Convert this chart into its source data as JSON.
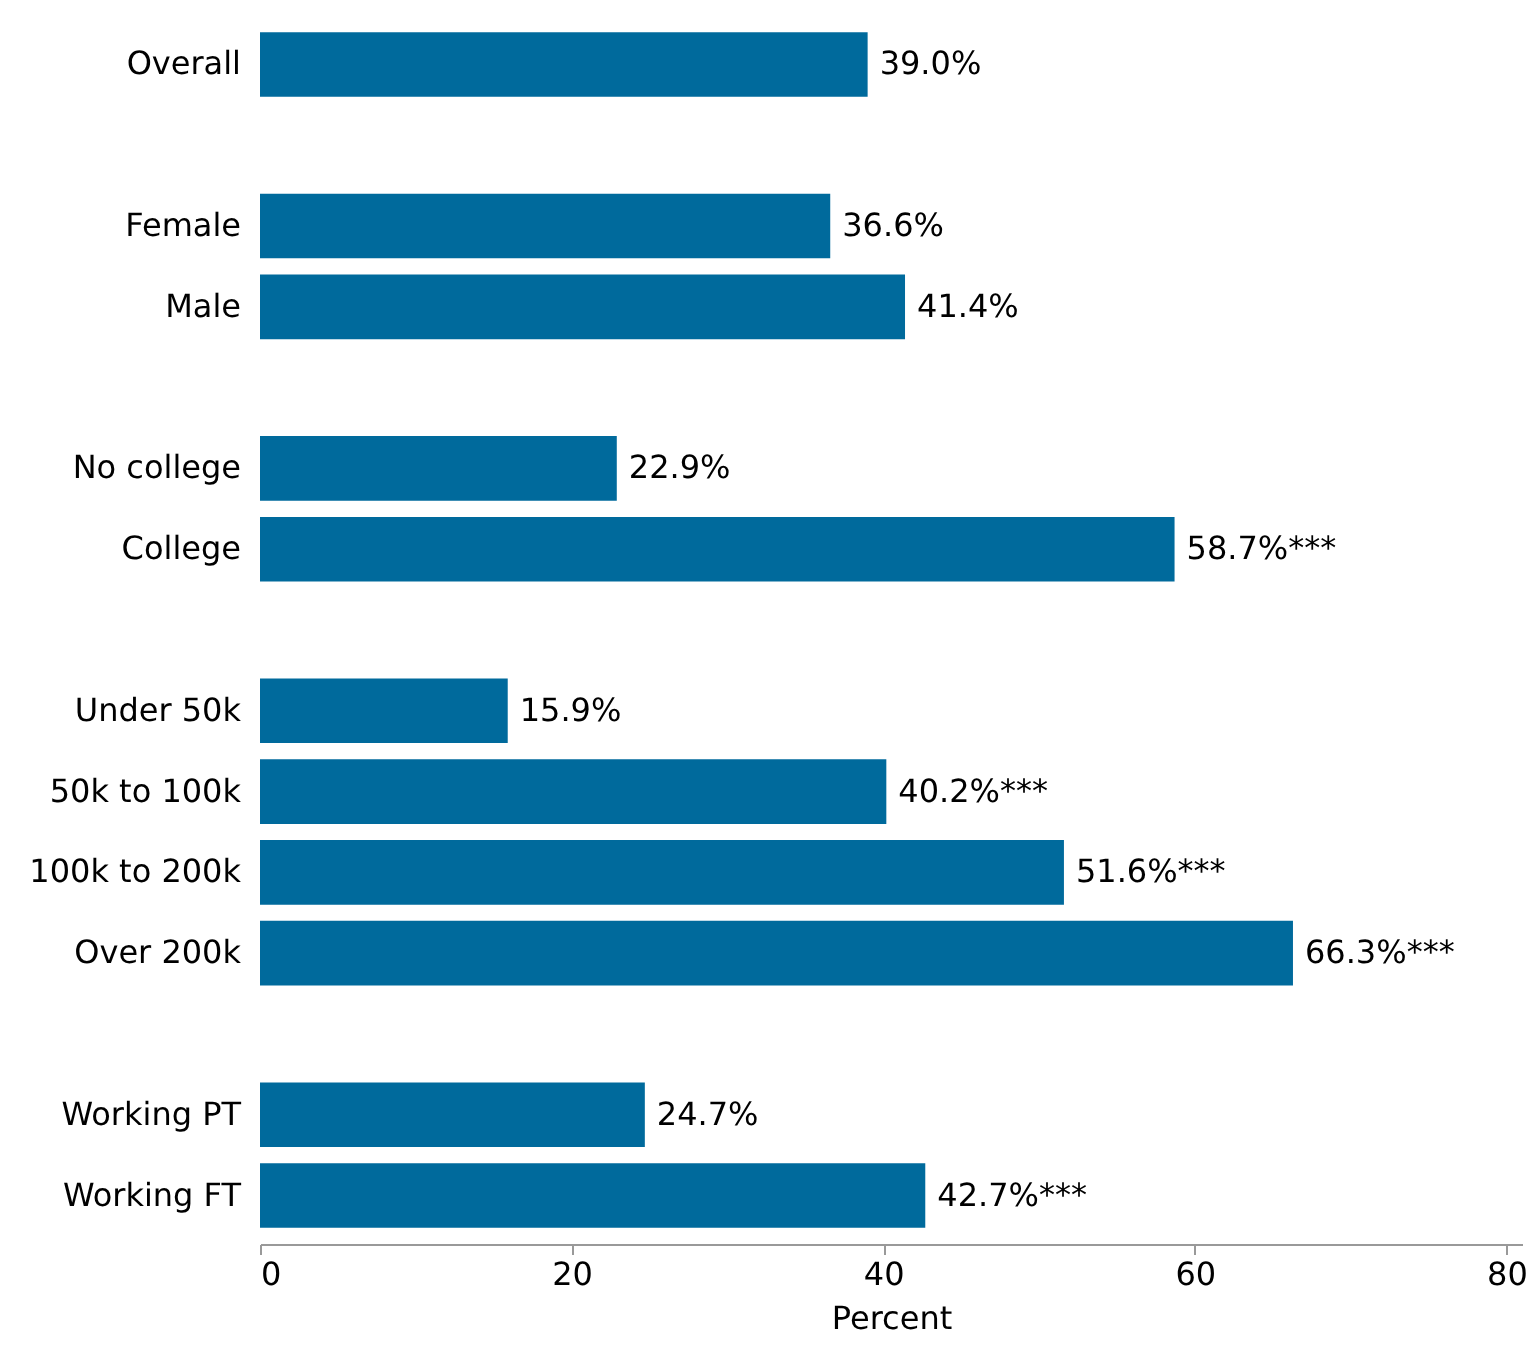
{
  "chart_data": {
    "type": "bar",
    "orientation": "horizontal",
    "xlabel": "Percent",
    "categories": [
      "Overall",
      null,
      "Female",
      "Male",
      null,
      "No college",
      "College",
      null,
      "Under 50k",
      "50k to 100k",
      "100k to 200k",
      "Over 200k",
      null,
      "Working PT",
      "Working FT"
    ],
    "values": [
      39.0,
      null,
      36.6,
      41.4,
      null,
      22.9,
      58.7,
      null,
      15.9,
      40.2,
      51.6,
      66.3,
      null,
      24.7,
      42.7
    ],
    "value_labels": [
      "39.0%",
      null,
      "36.6%",
      "41.4%",
      null,
      "22.9%",
      "58.7%***",
      null,
      "15.9%",
      "40.2%***",
      "51.6%***",
      "66.3%***",
      null,
      "24.7%",
      "42.7%***"
    ],
    "color": "#006a9c",
    "xlim": [
      0,
      81
    ],
    "xticks": [
      0,
      20,
      40,
      60,
      80
    ],
    "grid": false
  }
}
